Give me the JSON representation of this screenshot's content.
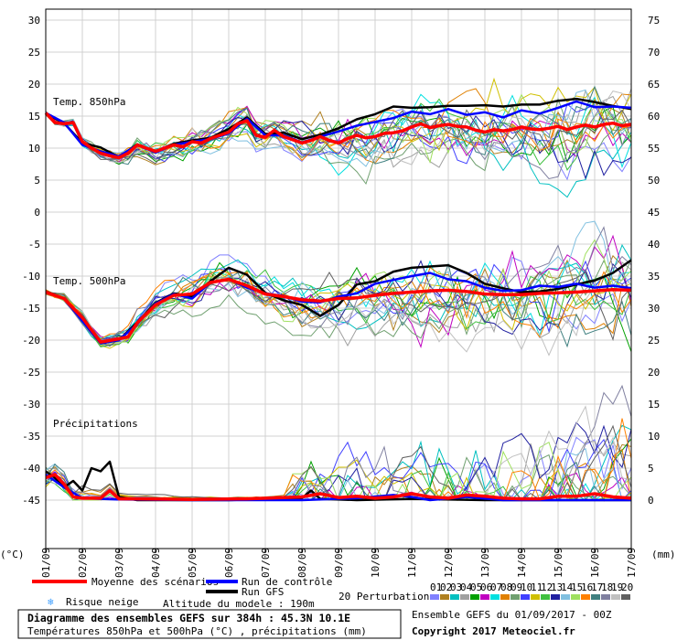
{
  "chart_data": {
    "type": "line",
    "title": "Diagramme des ensembles GEFS sur 384h : 45.3N 10.1E",
    "subtitle": "Températures 850hPa et 500hPa (°C) , précipitations (mm)",
    "left_unit": "(°C)",
    "right_unit": "(mm)",
    "left_ticks": [
      "30",
      "25",
      "20",
      "15",
      "10",
      "5",
      "0",
      "-5",
      "-10",
      "-15",
      "-20",
      "-25",
      "-30",
      "-35",
      "-40",
      "-45"
    ],
    "right_ticks": [
      "75",
      "70",
      "65",
      "60",
      "55",
      "50",
      "45",
      "40",
      "35",
      "30",
      "25",
      "20",
      "15",
      "10",
      "5",
      "0"
    ],
    "x_ticks": [
      "01/09",
      "02/09",
      "03/09",
      "04/09",
      "05/09",
      "06/09",
      "07/09",
      "08/09",
      "09/09",
      "10/09",
      "11/09",
      "12/09",
      "13/09",
      "14/09",
      "15/09",
      "16/09",
      "17/09"
    ],
    "x_range_hours": [
      0,
      384
    ],
    "ylim_left": [
      -45,
      30
    ],
    "panels": {
      "t850": {
        "label": "Temp. 850hPa",
        "mean": [
          [
            0,
            15.5
          ],
          [
            6,
            14
          ],
          [
            12,
            13.8
          ],
          [
            18,
            14
          ],
          [
            24,
            11
          ],
          [
            30,
            10
          ],
          [
            36,
            9.2
          ],
          [
            42,
            8.8
          ],
          [
            48,
            8.5
          ],
          [
            54,
            9.2
          ],
          [
            60,
            10.5
          ],
          [
            66,
            10
          ],
          [
            72,
            9.5
          ],
          [
            78,
            10
          ],
          [
            84,
            10.5
          ],
          [
            90,
            10.2
          ],
          [
            96,
            11
          ],
          [
            102,
            10.8
          ],
          [
            108,
            11.5
          ],
          [
            114,
            12
          ],
          [
            120,
            12.5
          ],
          [
            126,
            13.8
          ],
          [
            132,
            14.3
          ],
          [
            138,
            12
          ],
          [
            144,
            11.7
          ],
          [
            150,
            12.8
          ],
          [
            156,
            11.8
          ],
          [
            162,
            11.3
          ],
          [
            168,
            10.8
          ],
          [
            174,
            11.2
          ],
          [
            180,
            11.8
          ],
          [
            186,
            11.2
          ],
          [
            192,
            10.8
          ],
          [
            198,
            11.5
          ],
          [
            204,
            12
          ],
          [
            210,
            11.6
          ],
          [
            216,
            11.8
          ],
          [
            222,
            12.3
          ],
          [
            228,
            12.4
          ],
          [
            234,
            12.7
          ],
          [
            240,
            13.3
          ],
          [
            246,
            13.8
          ],
          [
            252,
            13.2
          ],
          [
            258,
            13.5
          ],
          [
            264,
            13.7
          ],
          [
            270,
            13.4
          ],
          [
            276,
            13.3
          ],
          [
            282,
            12.8
          ],
          [
            288,
            12.5
          ],
          [
            294,
            12.9
          ],
          [
            300,
            12.7
          ],
          [
            306,
            12.9
          ],
          [
            312,
            13.3
          ],
          [
            318,
            13
          ],
          [
            324,
            12.9
          ],
          [
            330,
            13.1
          ],
          [
            336,
            13.4
          ],
          [
            342,
            12.9
          ],
          [
            348,
            13.3
          ],
          [
            354,
            13.6
          ],
          [
            360,
            13.3
          ],
          [
            366,
            13.7
          ],
          [
            372,
            13.9
          ],
          [
            378,
            13.5
          ],
          [
            384,
            13.7
          ]
        ],
        "control": [
          [
            0,
            15.5
          ],
          [
            12,
            14
          ],
          [
            24,
            10.5
          ],
          [
            36,
            9.5
          ],
          [
            48,
            8.7
          ],
          [
            60,
            10.5
          ],
          [
            72,
            9.3
          ],
          [
            84,
            10.5
          ],
          [
            96,
            11
          ],
          [
            108,
            11.4
          ],
          [
            120,
            12.3
          ],
          [
            132,
            14.6
          ],
          [
            144,
            12
          ],
          [
            156,
            12
          ],
          [
            168,
            10.9
          ],
          [
            180,
            11.8
          ],
          [
            192,
            12.6
          ],
          [
            204,
            13.5
          ],
          [
            216,
            14.1
          ],
          [
            228,
            14.7
          ],
          [
            240,
            15.7
          ],
          [
            252,
            15.3
          ],
          [
            264,
            16.1
          ],
          [
            276,
            15.2
          ],
          [
            288,
            15.6
          ],
          [
            300,
            14.8
          ],
          [
            312,
            15.9
          ],
          [
            324,
            15.4
          ],
          [
            336,
            16.3
          ],
          [
            348,
            17.3
          ],
          [
            360,
            16.4
          ],
          [
            372,
            16.5
          ],
          [
            384,
            16.3
          ]
        ],
        "gfs": [
          [
            0,
            15.4
          ],
          [
            12,
            13.9
          ],
          [
            24,
            10.8
          ],
          [
            36,
            10.1
          ],
          [
            48,
            8.6
          ],
          [
            60,
            10.6
          ],
          [
            72,
            9.4
          ],
          [
            84,
            10.7
          ],
          [
            96,
            11.2
          ],
          [
            108,
            11.6
          ],
          [
            120,
            13
          ],
          [
            132,
            14.8
          ],
          [
            144,
            12.2
          ],
          [
            156,
            12.4
          ],
          [
            168,
            11.4
          ],
          [
            180,
            12.1
          ],
          [
            192,
            13.1
          ],
          [
            204,
            14.5
          ],
          [
            216,
            15.3
          ],
          [
            228,
            16.5
          ],
          [
            240,
            16.3
          ],
          [
            252,
            16.4
          ],
          [
            264,
            16.6
          ],
          [
            276,
            16.6
          ],
          [
            288,
            16.7
          ],
          [
            300,
            16.5
          ],
          [
            312,
            16.8
          ],
          [
            324,
            16.8
          ],
          [
            336,
            17.4
          ],
          [
            348,
            17.7
          ],
          [
            360,
            17.2
          ],
          [
            372,
            16.6
          ],
          [
            384,
            16.1
          ]
        ]
      },
      "t500": {
        "label": "Temp. 500hPa",
        "mean": [
          [
            0,
            -12.5
          ],
          [
            12,
            -13.5
          ],
          [
            24,
            -16.5
          ],
          [
            36,
            -20.3
          ],
          [
            48,
            -19.8
          ],
          [
            54,
            -19.5
          ],
          [
            60,
            -17.3
          ],
          [
            72,
            -14.5
          ],
          [
            84,
            -13
          ],
          [
            96,
            -12.8
          ],
          [
            108,
            -11
          ],
          [
            120,
            -10.5
          ],
          [
            132,
            -11.5
          ],
          [
            144,
            -12.8
          ],
          [
            156,
            -13.2
          ],
          [
            168,
            -13.7
          ],
          [
            180,
            -13.9
          ],
          [
            192,
            -13.5
          ],
          [
            204,
            -13.4
          ],
          [
            216,
            -13
          ],
          [
            228,
            -12.7
          ],
          [
            240,
            -12.5
          ],
          [
            252,
            -12.3
          ],
          [
            264,
            -12.2
          ],
          [
            276,
            -12.4
          ],
          [
            288,
            -12.8
          ],
          [
            300,
            -12.9
          ],
          [
            312,
            -12.9
          ],
          [
            324,
            -12.7
          ],
          [
            336,
            -12.6
          ],
          [
            348,
            -12.5
          ],
          [
            360,
            -12.3
          ],
          [
            372,
            -12.1
          ],
          [
            384,
            -12.2
          ]
        ],
        "control": [
          [
            0,
            -12.5
          ],
          [
            12,
            -13.5
          ],
          [
            24,
            -17
          ],
          [
            36,
            -20.5
          ],
          [
            48,
            -20
          ],
          [
            60,
            -17.5
          ],
          [
            72,
            -14.3
          ],
          [
            84,
            -12.8
          ],
          [
            96,
            -13.5
          ],
          [
            108,
            -11
          ],
          [
            120,
            -10.5
          ],
          [
            132,
            -11.8
          ],
          [
            144,
            -12.7
          ],
          [
            156,
            -13.1
          ],
          [
            168,
            -14
          ],
          [
            180,
            -14.1
          ],
          [
            192,
            -13.2
          ],
          [
            204,
            -12.7
          ],
          [
            216,
            -11.2
          ],
          [
            228,
            -10.6
          ],
          [
            240,
            -10
          ],
          [
            252,
            -9.5
          ],
          [
            264,
            -10.5
          ],
          [
            276,
            -10.8
          ],
          [
            288,
            -11.8
          ],
          [
            300,
            -12.3
          ],
          [
            312,
            -12.2
          ],
          [
            324,
            -11.5
          ],
          [
            336,
            -11.7
          ],
          [
            348,
            -11.2
          ],
          [
            360,
            -11.8
          ],
          [
            372,
            -11.5
          ],
          [
            384,
            -11.9
          ]
        ],
        "gfs": [
          [
            0,
            -12.4
          ],
          [
            12,
            -13.5
          ],
          [
            24,
            -17
          ],
          [
            36,
            -20.5
          ],
          [
            48,
            -20
          ],
          [
            60,
            -17.2
          ],
          [
            72,
            -14.2
          ],
          [
            84,
            -12.7
          ],
          [
            96,
            -13.2
          ],
          [
            108,
            -10.8
          ],
          [
            120,
            -8.7
          ],
          [
            132,
            -9.8
          ],
          [
            144,
            -12.6
          ],
          [
            156,
            -13.8
          ],
          [
            168,
            -14.5
          ],
          [
            180,
            -16.2
          ],
          [
            192,
            -14.5
          ],
          [
            204,
            -11.3
          ],
          [
            216,
            -10.8
          ],
          [
            228,
            -9.3
          ],
          [
            240,
            -8.7
          ],
          [
            252,
            -8.5
          ],
          [
            264,
            -8.3
          ],
          [
            276,
            -9.5
          ],
          [
            288,
            -11.2
          ],
          [
            300,
            -11.9
          ],
          [
            312,
            -12.5
          ],
          [
            324,
            -12.4
          ],
          [
            336,
            -12
          ],
          [
            348,
            -11.3
          ],
          [
            360,
            -10.7
          ],
          [
            372,
            -9.5
          ],
          [
            384,
            -7.5
          ]
        ]
      },
      "precip": {
        "label": "Précipitations",
        "mean": [
          [
            0,
            3.5
          ],
          [
            6,
            4
          ],
          [
            12,
            2.5
          ],
          [
            18,
            0.5
          ],
          [
            24,
            0.3
          ],
          [
            36,
            0.3
          ],
          [
            42,
            1.5
          ],
          [
            48,
            0.2
          ],
          [
            60,
            0.2
          ],
          [
            96,
            0.1
          ],
          [
            132,
            0.2
          ],
          [
            168,
            0.5
          ],
          [
            180,
            1
          ],
          [
            192,
            0.4
          ],
          [
            204,
            0.6
          ],
          [
            216,
            0.3
          ],
          [
            228,
            0.5
          ],
          [
            240,
            1
          ],
          [
            252,
            0.5
          ],
          [
            264,
            0.3
          ],
          [
            276,
            0.8
          ],
          [
            288,
            0.6
          ],
          [
            300,
            0.3
          ],
          [
            312,
            0.2
          ],
          [
            324,
            0.2
          ],
          [
            336,
            0.6
          ],
          [
            348,
            0.6
          ],
          [
            360,
            1
          ],
          [
            372,
            0.5
          ],
          [
            384,
            0.3
          ]
        ],
        "control": [
          [
            0,
            4
          ],
          [
            12,
            2
          ],
          [
            24,
            0.3
          ],
          [
            48,
            0.1
          ],
          [
            96,
            0
          ],
          [
            168,
            0
          ],
          [
            204,
            0.3
          ],
          [
            228,
            0.8
          ],
          [
            240,
            0.5
          ],
          [
            252,
            0
          ],
          [
            276,
            0.5
          ],
          [
            300,
            0
          ],
          [
            336,
            0
          ],
          [
            384,
            0
          ]
        ],
        "gfs": [
          [
            0,
            4.5
          ],
          [
            6,
            3.5
          ],
          [
            12,
            2
          ],
          [
            18,
            3
          ],
          [
            24,
            1.5
          ],
          [
            30,
            5
          ],
          [
            36,
            4.5
          ],
          [
            42,
            6
          ],
          [
            48,
            0.5
          ],
          [
            60,
            0
          ],
          [
            120,
            0
          ],
          [
            168,
            0.3
          ],
          [
            174,
            1.5
          ],
          [
            180,
            0.2
          ],
          [
            204,
            0
          ],
          [
            240,
            0.2
          ],
          [
            288,
            0
          ],
          [
            384,
            0
          ]
        ]
      }
    },
    "perturbation_palette": [
      "#8080ff",
      "#b08020",
      "#00c0c0",
      "#a0a0a0",
      "#00a000",
      "#c000c0",
      "#00e0e0",
      "#e08000",
      "#70a070",
      "#4040ff",
      "#d0c000",
      "#40c040",
      "#2020a0",
      "#80c0e0",
      "#a0e060",
      "#ff8000",
      "#408080",
      "#8080a0",
      "#c0c0c0",
      "#606060"
    ],
    "legend": {
      "mean": "Moyenne des scénarios",
      "control": "Run de contrôle",
      "gfs": "Run GFS",
      "perturbations": "20 Perturbations",
      "pert_numbers": [
        "01",
        "02",
        "03",
        "04",
        "05",
        "06",
        "07",
        "08",
        "09",
        "10",
        "11",
        "12",
        "13",
        "14",
        "15",
        "16",
        "17",
        "18",
        "19",
        "20"
      ],
      "snow_risk": "Risque neige",
      "altitude": "Altitude du modele : 190m",
      "mean_color": "#ff0000",
      "control_color": "#0000ff",
      "gfs_color": "#000000"
    },
    "footer": {
      "box_title": "Diagramme des ensembles GEFS sur 384h : 45.3N 10.1E",
      "box_subtitle": "Températures 850hPa et 500hPa (°C) , précipitations (mm)",
      "run": "Ensemble GEFS du 01/09/2017 - 00Z",
      "copyright": "Copyright 2017 Meteociel.fr"
    }
  }
}
